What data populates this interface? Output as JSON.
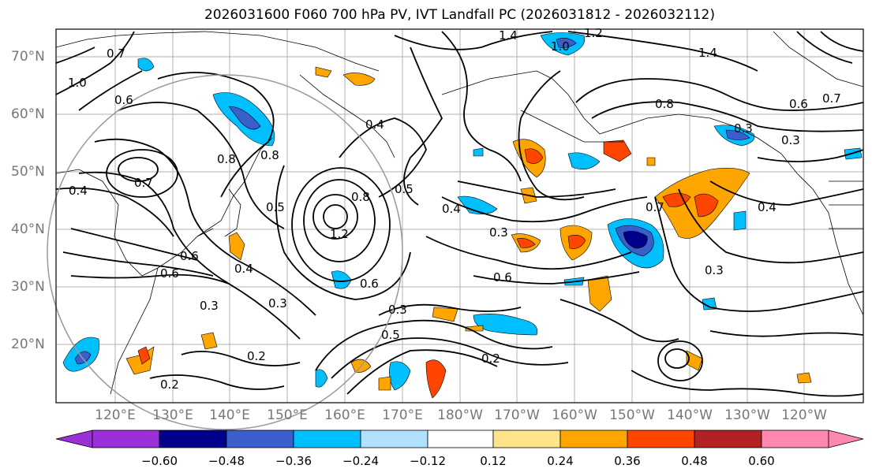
{
  "title": "2026031600 F060 700 hPa PV, IVT Landfall PC (2026031812 - 2026032112)",
  "lat_labels": [
    "70°N",
    "60°N",
    "50°N",
    "40°N",
    "30°N",
    "20°N"
  ],
  "lon_labels": [
    "120°E",
    "130°E",
    "140°E",
    "150°E",
    "160°E",
    "170°E",
    "180°W",
    "170°W",
    "160°W",
    "150°W",
    "140°W",
    "130°W",
    "120°W"
  ],
  "colorbar": {
    "ticks": [
      "−0.60",
      "−0.48",
      "−0.36",
      "−0.24",
      "−0.12",
      "0.12",
      "0.24",
      "0.36",
      "0.48",
      "0.60"
    ],
    "colors": [
      "#9b30d8",
      "#00008b",
      "#3a5fcd",
      "#00bfff",
      "#b0e2ff",
      "#ffffff",
      "#ffe58a",
      "#ffa500",
      "#ff4500",
      "#b22222",
      "#ff88b0"
    ]
  },
  "contour_labels": [
    "1.4",
    "1.0",
    "1.2",
    "1.4",
    "0.8",
    "0.7",
    "1.0",
    "0.6",
    "0.6",
    "0.8",
    "0.7",
    "0.4",
    "0.8",
    "0.5",
    "0.3",
    "0.3",
    "0.4",
    "0.3",
    "0.6",
    "0.3",
    "0.4",
    "0.5",
    "0.2",
    "0.2",
    "0.2",
    "0.3",
    "0.7",
    "0.4",
    "1.2",
    "0.8",
    "0.6",
    "0.4",
    "0.3",
    "0.6",
    "0.7",
    "0.3",
    "0.5",
    "0.6"
  ]
}
